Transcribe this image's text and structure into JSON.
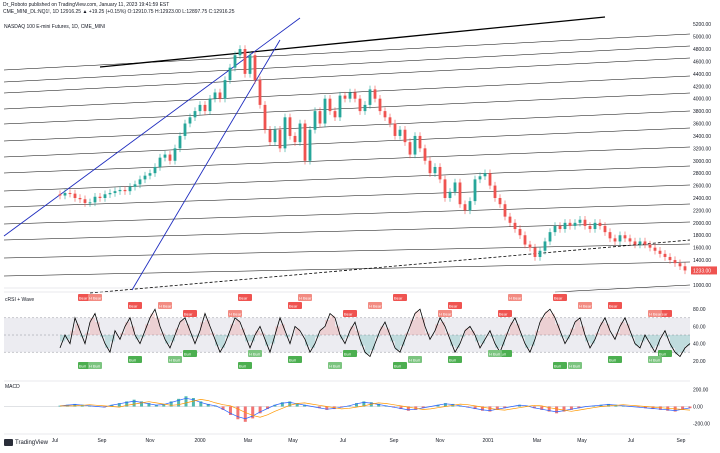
{
  "header": {
    "author": "Dr_Roboto published on TradingView.com, January 11, 2023 19:41:59 EST",
    "ticker": "CME_MINI_DL:NQ1!, 1D 12916.25 ▲ +19.25 (+0.15%) O:12910.75 H:12923.00 L:12897.75 C:12916.25",
    "symbol_title": "NASDAQ 100 E-mini Futures, 1D, CME_MINI"
  },
  "chart_data": [
    {
      "type": "line",
      "pane": "price",
      "title": "NASDAQ 100 E-mini Futures, 1D, CME_MINI",
      "y_ticks": [
        5200,
        5000,
        4800,
        4600,
        4400,
        4200,
        4000,
        3800,
        3600,
        3400,
        3200,
        3000,
        2800,
        2600,
        2400,
        2200,
        2000,
        1800,
        1600,
        1400,
        1200,
        1000
      ],
      "ylim": [
        950,
        5300
      ],
      "last_price_label": "1233.00",
      "series": [
        {
          "values": [
            2460,
            2440,
            2480,
            2470,
            2400,
            2380,
            2320,
            2330,
            2420,
            2400,
            2460,
            2480,
            2510,
            2530,
            2510,
            2580,
            2620,
            2700,
            2760,
            2800,
            2900,
            3050,
            3100,
            3000,
            3200,
            3400,
            3600,
            3700,
            3800,
            3900,
            3800,
            4000,
            4100,
            4000,
            4300,
            4500,
            4700,
            4800,
            4400,
            4700,
            4300,
            3900,
            3500,
            3300,
            3500,
            3200,
            3700,
            3400,
            3300,
            3600,
            3000,
            3500,
            3800,
            3600,
            4000,
            3800,
            3700,
            4050,
            4000,
            4100,
            4000,
            3800,
            3900,
            4150,
            4000,
            3800,
            3700,
            3600,
            3400,
            3500,
            3300,
            3100,
            3400,
            3200,
            3000,
            2800,
            2900,
            2700,
            2400,
            2500,
            2650,
            2300,
            2200,
            2350,
            2700,
            2750,
            2800,
            2600,
            2400,
            2300,
            2100,
            2000,
            1900,
            1800,
            1650,
            1600,
            1450,
            1550,
            1700,
            1850,
            1950,
            1900,
            2000,
            1950,
            2000,
            2050,
            1950,
            1900,
            2000,
            1950,
            1850,
            1750,
            1700,
            1800,
            1750,
            1700,
            1650,
            1700,
            1650,
            1600,
            1550,
            1500,
            1450,
            1400,
            1350,
            1300,
            1233
          ]
        }
      ]
    },
    {
      "type": "line",
      "pane": "rsi",
      "title": "cRSI + Wave",
      "y_ticks": [
        "80.00",
        "60.00",
        "40.00",
        "20.00"
      ],
      "ylim": [
        0,
        100
      ],
      "series": [
        {
          "values": [
            35,
            50,
            40,
            70,
            55,
            40,
            65,
            75,
            55,
            40,
            30,
            55,
            45,
            60,
            70,
            50,
            40,
            55,
            70,
            80,
            60,
            45,
            35,
            50,
            65,
            70,
            55,
            40,
            55,
            75,
            60,
            45,
            30,
            40,
            55,
            70,
            65,
            50,
            35,
            50,
            60,
            45,
            30,
            50,
            70,
            55,
            40,
            60,
            55,
            45,
            30,
            40,
            55,
            60,
            75,
            70,
            50,
            40,
            55,
            65,
            45,
            30,
            25,
            40,
            55,
            65,
            50,
            35,
            30,
            45,
            60,
            75,
            80,
            60,
            45,
            55,
            70,
            60,
            45,
            30,
            40,
            55,
            60,
            50,
            35,
            45,
            55,
            40,
            30,
            45,
            60,
            70,
            55,
            40,
            30,
            45,
            65,
            75,
            80,
            70,
            55,
            40,
            50,
            65,
            70,
            50,
            35,
            45,
            60,
            70,
            55,
            45,
            60,
            70,
            55,
            40,
            35,
            50,
            40,
            30,
            45,
            55,
            40,
            30,
            25,
            35,
            40
          ]
        }
      ],
      "signal_labels": {
        "bear": [
          "Bear",
          "Bear",
          "Bear",
          "Bear",
          "Bear",
          "Bear",
          "Bear",
          "Bear",
          "Bear",
          "Bear",
          "Bear",
          "Bear"
        ],
        "hbear": [
          "H Bear",
          "H Bear",
          "H Bear",
          "H Bear",
          "H Bear",
          "H Bear",
          "H Bear",
          "H Bear",
          "H Bear"
        ],
        "bull": [
          "Bull",
          "Bull",
          "Bull",
          "Bull",
          "Bull",
          "Bull",
          "Bull",
          "Bull",
          "Bull",
          "Bull",
          "Bull",
          "Bull"
        ],
        "hbull": [
          "H Bull",
          "H Bull",
          "H Bull",
          "H Bull",
          "H Bull",
          "H Bull",
          "H Bull",
          "H Bull"
        ]
      }
    },
    {
      "type": "bar",
      "pane": "macd",
      "title": "MACD",
      "y_ticks": [
        "200.00",
        "0.00",
        "-200.00"
      ],
      "ylim": [
        -300,
        300
      ],
      "series": [
        {
          "name": "MACD",
          "values": [
            10,
            20,
            30,
            20,
            10,
            0,
            -10,
            20,
            40,
            60,
            80,
            60,
            40,
            20,
            30,
            60,
            90,
            120,
            100,
            60,
            30,
            10,
            -40,
            -100,
            -150,
            -180,
            -140,
            -80,
            -30,
            20,
            50,
            60,
            40,
            20,
            0,
            -20,
            -40,
            -30,
            -10,
            10,
            40,
            60,
            50,
            30,
            10,
            -10,
            -30,
            -50,
            -40,
            -20,
            0,
            20,
            40,
            30,
            10,
            -10,
            -30,
            -50,
            -60,
            -40,
            -20,
            0,
            20,
            10,
            -20,
            -40,
            -60,
            -80,
            -60,
            -40,
            -20,
            0,
            10,
            20,
            30,
            20,
            10,
            0,
            -10,
            -20,
            -30,
            -40,
            -50,
            -60,
            -40,
            -20
          ]
        }
      ]
    }
  ],
  "x_axis": {
    "labels": [
      "Jul",
      "Sep",
      "Nov",
      "2000",
      "Mar",
      "May",
      "Jul",
      "Sep",
      "Nov",
      "2001",
      "Mar",
      "May",
      "Jul",
      "Sep"
    ]
  },
  "brand": {
    "name": "TradingView"
  }
}
